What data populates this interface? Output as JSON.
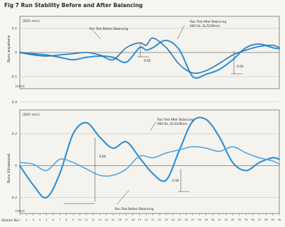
{
  "title": "Fig 7 Run Stability Before and After Balancing",
  "xaxis": {
    "label": "Station No.",
    "ticks": [
      "1",
      "2",
      "3",
      "4",
      "5",
      "6",
      "7",
      "8",
      "9",
      "10",
      "11",
      "12",
      "13",
      "14",
      "15",
      "16",
      "17",
      "18",
      "19",
      "20",
      "21",
      "22",
      "23",
      "24",
      "25",
      "26",
      "27",
      "28",
      "29",
      "30",
      "31",
      "32",
      "33",
      "34",
      "35",
      "36",
      "37",
      "38",
      "39",
      "40"
    ]
  },
  "chart_data": [
    {
      "type": "line",
      "title": "",
      "units": "[DEV mm]",
      "xlabel": "",
      "ylabel": "Runs anywhere",
      "ylim": [
        -0.15,
        0.15
      ],
      "yticks": [
        "0.1",
        "0",
        "-0.1"
      ],
      "yunit": "[mm]",
      "grid": true,
      "x": [
        1,
        3,
        5,
        7,
        9,
        11,
        13,
        15,
        17,
        19,
        20,
        21,
        23,
        25,
        27,
        29,
        31,
        33,
        35,
        37,
        39,
        40
      ],
      "series": [
        {
          "name": "Run Test Before Balancing",
          "color": "#2f93d8",
          "values": [
            0,
            -0.005,
            -0.01,
            -0.02,
            -0.03,
            -0.02,
            -0.015,
            -0.02,
            -0.04,
            0.02,
            0.01,
            0.02,
            0.05,
            0.01,
            -0.1,
            -0.09,
            -0.07,
            -0.03,
            0.02,
            0.035,
            0.02,
            0.015
          ]
        },
        {
          "name": "Run Test After Balancing",
          "note": "600 Hz, 2L/1200m/s",
          "color": "#1f6fc0",
          "values": [
            0,
            -0.01,
            -0.015,
            -0.01,
            -0.005,
            0,
            -0.01,
            -0.03,
            0.02,
            0.04,
            0.03,
            0.06,
            0.02,
            -0.05,
            -0.085,
            -0.075,
            -0.045,
            -0.01,
            0.01,
            0.025,
            0.03,
            0.02
          ]
        }
      ],
      "annotations": [
        "0.05",
        "0.04"
      ]
    },
    {
      "type": "line",
      "title": "",
      "units": "[DEV mm]",
      "xlabel": "",
      "ylabel": "Runs Ultrasound",
      "ylim": [
        -0.3,
        0.35
      ],
      "yticks": [
        "0.4",
        "0.2",
        "0",
        "-0.2"
      ],
      "yunit": "[mm]",
      "grid": true,
      "x": [
        1,
        3,
        5,
        7,
        9,
        11,
        13,
        15,
        17,
        19,
        21,
        23,
        25,
        27,
        29,
        31,
        33,
        35,
        37,
        39,
        40
      ],
      "series": [
        {
          "name": "Run Test After Balancing",
          "note": "600 Hz, 2L/1200m/s",
          "color": "#2b8fd6",
          "values": [
            0,
            -0.12,
            -0.2,
            -0.05,
            0.2,
            0.27,
            0.18,
            0.11,
            0.15,
            0.05,
            -0.05,
            -0.09,
            0.1,
            0.28,
            0.29,
            0.18,
            0.02,
            -0.03,
            0.02,
            0.05,
            0.04
          ]
        },
        {
          "name": "Run Test Before Balancing",
          "color": "#4aa3e0",
          "values": [
            0.02,
            0.01,
            -0.03,
            0.04,
            0.02,
            -0.02,
            -0.06,
            -0.06,
            -0.02,
            0.06,
            0.05,
            0.08,
            0.1,
            0.12,
            0.11,
            0.09,
            0.12,
            0.08,
            0.05,
            0.03,
            0.01
          ]
        }
      ],
      "annotations": [
        "0.60",
        "0.30"
      ]
    }
  ]
}
